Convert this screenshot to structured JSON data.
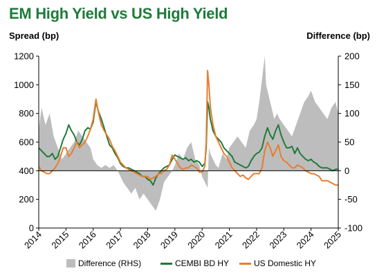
{
  "title": "EM High Yield vs US High Yield",
  "left_axis_title": "Spread (bp)",
  "right_axis_title": "Difference (bp)",
  "colors": {
    "title": "#1f7a3a",
    "difference": "#bdbdbd",
    "cembi": "#1f7a3a",
    "us": "#e87d2e"
  },
  "chart_data": {
    "type": "line",
    "title": "EM High Yield vs US High Yield",
    "ylabel": "Spread (bp)",
    "y2label": "Difference (bp)",
    "xlim": [
      2014,
      2025
    ],
    "ylim": [
      0,
      1200
    ],
    "y2lim": [
      -100,
      200
    ],
    "x_ticks": [
      "2014",
      "2015",
      "2016",
      "2017",
      "2018",
      "2019",
      "2020",
      "2021",
      "2022",
      "2023",
      "2024",
      "2025"
    ],
    "y_ticks": [
      "0",
      "200",
      "400",
      "600",
      "800",
      "1000",
      "1200"
    ],
    "y2_ticks": [
      "-100",
      "-50",
      "0",
      "50",
      "100",
      "150",
      "200"
    ],
    "grid": false,
    "legend_position": "bottom",
    "series": [
      {
        "name": "Difference (RHS)",
        "kind": "area",
        "axis": "right",
        "x": [
          2014.0,
          2014.1,
          2014.25,
          2014.4,
          2014.55,
          2014.7,
          2014.85,
          2015.0,
          2015.15,
          2015.3,
          2015.45,
          2015.6,
          2015.75,
          2015.9,
          2016.0,
          2016.15,
          2016.3,
          2016.45,
          2016.6,
          2016.75,
          2016.9,
          2017.0,
          2017.1,
          2017.25,
          2017.4,
          2017.55,
          2017.7,
          2017.85,
          2018.0,
          2018.15,
          2018.3,
          2018.45,
          2018.6,
          2018.75,
          2018.9,
          2019.0,
          2019.15,
          2019.3,
          2019.45,
          2019.6,
          2019.75,
          2019.9,
          2020.0,
          2020.1,
          2020.2,
          2020.25,
          2020.3,
          2020.4,
          2020.5,
          2020.6,
          2020.75,
          2020.9,
          2021.0,
          2021.15,
          2021.3,
          2021.45,
          2021.6,
          2021.75,
          2021.9,
          2022.0,
          2022.1,
          2022.2,
          2022.3,
          2022.35,
          2022.45,
          2022.55,
          2022.65,
          2022.75,
          2022.85,
          2023.0,
          2023.15,
          2023.3,
          2023.45,
          2023.6,
          2023.75,
          2023.9,
          2024.0,
          2024.15,
          2024.3,
          2024.45,
          2024.6,
          2024.75,
          2024.9,
          2025.0
        ],
        "values": [
          70,
          110,
          80,
          100,
          60,
          40,
          20,
          30,
          40,
          50,
          70,
          60,
          50,
          40,
          20,
          10,
          5,
          10,
          5,
          10,
          0,
          -10,
          -20,
          -30,
          -40,
          -30,
          -50,
          -40,
          -50,
          -60,
          -70,
          -50,
          -20,
          -10,
          0,
          10,
          30,
          20,
          40,
          50,
          20,
          10,
          -10,
          -20,
          -30,
          40,
          30,
          20,
          10,
          5,
          30,
          20,
          40,
          50,
          60,
          50,
          40,
          70,
          80,
          90,
          120,
          160,
          200,
          150,
          130,
          110,
          90,
          100,
          90,
          80,
          70,
          60,
          80,
          100,
          120,
          130,
          140,
          120,
          110,
          100,
          90,
          110,
          120,
          100
        ]
      },
      {
        "name": "CEMBI BD HY",
        "kind": "line",
        "axis": "left",
        "x": [
          2014.0,
          2014.1,
          2014.2,
          2014.3,
          2014.4,
          2014.5,
          2014.6,
          2014.7,
          2014.8,
          2014.9,
          2015.0,
          2015.1,
          2015.2,
          2015.3,
          2015.4,
          2015.5,
          2015.6,
          2015.7,
          2015.8,
          2015.9,
          2016.0,
          2016.1,
          2016.2,
          2016.3,
          2016.4,
          2016.5,
          2016.6,
          2016.7,
          2016.8,
          2016.9,
          2017.0,
          2017.1,
          2017.2,
          2017.3,
          2017.4,
          2017.5,
          2017.6,
          2017.7,
          2017.8,
          2017.9,
          2018.0,
          2018.1,
          2018.2,
          2018.3,
          2018.4,
          2018.5,
          2018.6,
          2018.7,
          2018.8,
          2018.9,
          2019.0,
          2019.1,
          2019.2,
          2019.3,
          2019.4,
          2019.5,
          2019.6,
          2019.7,
          2019.8,
          2019.9,
          2020.0,
          2020.1,
          2020.15,
          2020.2,
          2020.25,
          2020.3,
          2020.35,
          2020.4,
          2020.5,
          2020.6,
          2020.7,
          2020.8,
          2020.9,
          2021.0,
          2021.1,
          2021.2,
          2021.3,
          2021.4,
          2021.5,
          2021.6,
          2021.7,
          2021.8,
          2021.9,
          2022.0,
          2022.1,
          2022.2,
          2022.3,
          2022.4,
          2022.5,
          2022.6,
          2022.7,
          2022.8,
          2022.9,
          2023.0,
          2023.1,
          2023.2,
          2023.3,
          2023.4,
          2023.5,
          2023.6,
          2023.7,
          2023.8,
          2023.9,
          2024.0,
          2024.1,
          2024.2,
          2024.3,
          2024.4,
          2024.5,
          2024.6,
          2024.7,
          2024.8,
          2024.9,
          2025.0
        ],
        "values": [
          560,
          540,
          520,
          500,
          500,
          520,
          480,
          500,
          560,
          620,
          660,
          720,
          680,
          650,
          600,
          580,
          620,
          680,
          700,
          690,
          740,
          880,
          810,
          760,
          700,
          640,
          580,
          560,
          520,
          490,
          450,
          430,
          420,
          420,
          410,
          400,
          390,
          380,
          360,
          360,
          340,
          330,
          300,
          350,
          380,
          400,
          420,
          430,
          440,
          480,
          510,
          500,
          490,
          480,
          490,
          470,
          480,
          460,
          470,
          460,
          430,
          450,
          560,
          880,
          840,
          760,
          720,
          680,
          640,
          620,
          600,
          560,
          540,
          520,
          500,
          460,
          450,
          440,
          430,
          420,
          430,
          470,
          500,
          520,
          530,
          560,
          640,
          700,
          650,
          620,
          680,
          720,
          650,
          600,
          560,
          560,
          570,
          520,
          560,
          520,
          500,
          480,
          470,
          480,
          460,
          450,
          430,
          420,
          420,
          420,
          410,
          400,
          410,
          410
        ]
      },
      {
        "name": "US Domestic HY",
        "kind": "line",
        "axis": "left",
        "x": [
          2014.0,
          2014.1,
          2014.2,
          2014.3,
          2014.4,
          2014.5,
          2014.6,
          2014.7,
          2014.8,
          2014.9,
          2015.0,
          2015.1,
          2015.2,
          2015.3,
          2015.4,
          2015.5,
          2015.6,
          2015.7,
          2015.8,
          2015.9,
          2016.0,
          2016.1,
          2016.2,
          2016.3,
          2016.4,
          2016.5,
          2016.6,
          2016.7,
          2016.8,
          2016.9,
          2017.0,
          2017.1,
          2017.2,
          2017.3,
          2017.4,
          2017.5,
          2017.6,
          2017.7,
          2017.8,
          2017.9,
          2018.0,
          2018.1,
          2018.2,
          2018.3,
          2018.4,
          2018.5,
          2018.6,
          2018.7,
          2018.8,
          2018.9,
          2019.0,
          2019.1,
          2019.2,
          2019.3,
          2019.4,
          2019.5,
          2019.6,
          2019.7,
          2019.8,
          2019.9,
          2020.0,
          2020.1,
          2020.15,
          2020.2,
          2020.25,
          2020.3,
          2020.35,
          2020.4,
          2020.5,
          2020.6,
          2020.7,
          2020.8,
          2020.9,
          2021.0,
          2021.1,
          2021.2,
          2021.3,
          2021.4,
          2021.5,
          2021.6,
          2021.7,
          2021.8,
          2021.9,
          2022.0,
          2022.1,
          2022.2,
          2022.3,
          2022.4,
          2022.5,
          2022.6,
          2022.7,
          2022.8,
          2022.9,
          2023.0,
          2023.1,
          2023.2,
          2023.3,
          2023.4,
          2023.5,
          2023.6,
          2023.7,
          2023.8,
          2023.9,
          2024.0,
          2024.1,
          2024.2,
          2024.3,
          2024.4,
          2024.5,
          2024.6,
          2024.7,
          2024.8,
          2024.9,
          2025.0
        ],
        "values": [
          430,
          400,
          390,
          380,
          380,
          400,
          420,
          450,
          500,
          560,
          560,
          500,
          520,
          560,
          600,
          560,
          580,
          600,
          640,
          690,
          760,
          900,
          800,
          720,
          680,
          650,
          620,
          570,
          540,
          500,
          460,
          440,
          420,
          410,
          400,
          390,
          380,
          370,
          360,
          360,
          360,
          340,
          350,
          360,
          380,
          380,
          400,
          410,
          440,
          510,
          480,
          450,
          420,
          410,
          420,
          420,
          440,
          430,
          420,
          390,
          390,
          430,
          600,
          1100,
          1000,
          850,
          780,
          720,
          640,
          600,
          560,
          520,
          500,
          460,
          420,
          400,
          380,
          360,
          370,
          350,
          340,
          360,
          380,
          380,
          380,
          420,
          540,
          600,
          560,
          500,
          540,
          580,
          500,
          470,
          460,
          440,
          420,
          420,
          440,
          430,
          420,
          400,
          390,
          380,
          380,
          370,
          360,
          330,
          330,
          330,
          320,
          310,
          300,
          300
        ]
      }
    ]
  },
  "legend": {
    "difference_label": "Difference (RHS)",
    "cembi_label": "CEMBI BD HY",
    "us_label": "US Domestic HY"
  }
}
